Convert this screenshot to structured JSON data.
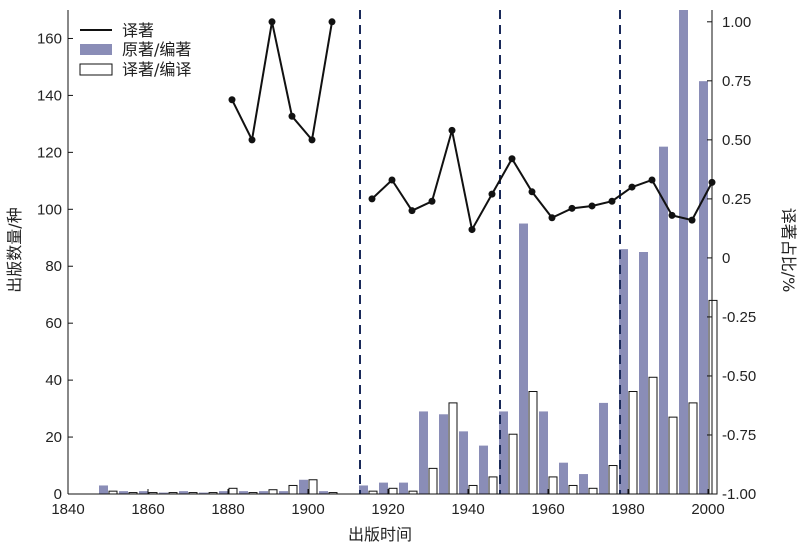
{
  "chart_data": {
    "type": "bar",
    "xlabel": "出版时间",
    "ylabel_left": "出版数量/种",
    "ylabel_right": "译著占比/%",
    "x_range": [
      1840,
      2001
    ],
    "x_ticks": [
      1840,
      1860,
      1880,
      1900,
      1920,
      1940,
      1960,
      1980,
      2000
    ],
    "y_left_range": [
      0,
      170
    ],
    "y_left_ticks": [
      0,
      20,
      40,
      60,
      80,
      100,
      120,
      140,
      160
    ],
    "y_right_range": [
      -1.0,
      1.05
    ],
    "y_right_ticks": [
      "-1.00",
      "-0.75",
      "-0.50",
      "-0.25",
      "0",
      "0.25",
      "0.50",
      "0.75",
      "1.00"
    ],
    "y_right_tick_values": [
      -1.0,
      -0.75,
      -0.5,
      -0.25,
      0,
      0.25,
      0.5,
      0.75,
      1.0
    ],
    "legend": [
      "译著",
      "原著/编著",
      "译著/编译"
    ],
    "legend_position": "top-left",
    "colors": {
      "line": "#111111",
      "original": "#8a8db7",
      "translated": "#ffffff",
      "dashed": "#1a2a5a"
    },
    "vertical_dashed_lines_x": [
      1913,
      1948,
      1978
    ],
    "bars": [
      {
        "x": 1850,
        "original": 3,
        "translated": 1
      },
      {
        "x": 1855,
        "original": 1,
        "translated": 0.5
      },
      {
        "x": 1860,
        "original": 1,
        "translated": 0.5
      },
      {
        "x": 1865,
        "original": 0.5,
        "translated": 0.5
      },
      {
        "x": 1870,
        "original": 1,
        "translated": 0.5
      },
      {
        "x": 1875,
        "original": 0.5,
        "translated": 0.5
      },
      {
        "x": 1880,
        "original": 1,
        "translated": 2
      },
      {
        "x": 1885,
        "original": 1,
        "translated": 0.5
      },
      {
        "x": 1890,
        "original": 1,
        "translated": 1.5
      },
      {
        "x": 1895,
        "original": 1,
        "translated": 3
      },
      {
        "x": 1900,
        "original": 5,
        "translated": 5
      },
      {
        "x": 1905,
        "original": 1,
        "translated": 0.5
      },
      {
        "x": 1915,
        "original": 3,
        "translated": 1
      },
      {
        "x": 1920,
        "original": 4,
        "translated": 2
      },
      {
        "x": 1925,
        "original": 4,
        "translated": 1
      },
      {
        "x": 1930,
        "original": 29,
        "translated": 9
      },
      {
        "x": 1935,
        "original": 28,
        "translated": 32
      },
      {
        "x": 1940,
        "original": 22,
        "translated": 3
      },
      {
        "x": 1945,
        "original": 17,
        "translated": 6
      },
      {
        "x": 1950,
        "original": 29,
        "translated": 21
      },
      {
        "x": 1955,
        "original": 95,
        "translated": 36
      },
      {
        "x": 1960,
        "original": 29,
        "translated": 6
      },
      {
        "x": 1965,
        "original": 11,
        "translated": 3
      },
      {
        "x": 1970,
        "original": 7,
        "translated": 2
      },
      {
        "x": 1975,
        "original": 32,
        "translated": 10
      },
      {
        "x": 1980,
        "original": 86,
        "translated": 36
      },
      {
        "x": 1985,
        "original": 85,
        "translated": 41
      },
      {
        "x": 1990,
        "original": 122,
        "translated": 27
      },
      {
        "x": 1995,
        "original": 170,
        "translated": 32
      },
      {
        "x": 2000,
        "original": 145,
        "translated": 68
      }
    ],
    "line_series": [
      {
        "points": [
          {
            "x": 1881,
            "y": 0.67
          },
          {
            "x": 1886,
            "y": 0.5
          },
          {
            "x": 1891,
            "y": 1.0
          },
          {
            "x": 1896,
            "y": 0.6
          },
          {
            "x": 1901,
            "y": 0.5
          },
          {
            "x": 1906,
            "y": 1.0
          }
        ]
      },
      {
        "points": [
          {
            "x": 1916,
            "y": 0.25
          },
          {
            "x": 1921,
            "y": 0.33
          },
          {
            "x": 1926,
            "y": 0.2
          },
          {
            "x": 1931,
            "y": 0.24
          },
          {
            "x": 1936,
            "y": 0.54
          },
          {
            "x": 1941,
            "y": 0.12
          },
          {
            "x": 1946,
            "y": 0.27
          },
          {
            "x": 1951,
            "y": 0.42
          },
          {
            "x": 1956,
            "y": 0.28
          },
          {
            "x": 1961,
            "y": 0.17
          },
          {
            "x": 1966,
            "y": 0.21
          },
          {
            "x": 1971,
            "y": 0.22
          },
          {
            "x": 1976,
            "y": 0.24
          },
          {
            "x": 1981,
            "y": 0.3
          },
          {
            "x": 1986,
            "y": 0.33
          },
          {
            "x": 1991,
            "y": 0.18
          },
          {
            "x": 1996,
            "y": 0.16
          },
          {
            "x": 2001,
            "y": 0.32
          }
        ]
      }
    ]
  }
}
